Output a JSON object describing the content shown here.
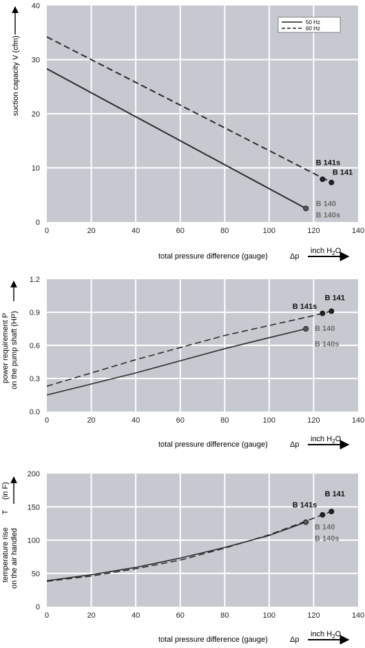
{
  "colors": {
    "plot_bg": "#c6c9d0",
    "grid": "#ffffff",
    "series_50hz": "#2b2b2b",
    "series_60hz": "#2b2b2b",
    "label_dark": "#111111",
    "label_grey": "#6d6d6d",
    "marker_50hz": "#555555",
    "marker_60hz": "#222222"
  },
  "xlabel": {
    "text": "total pressure difference (gauge)",
    "symbol": "Δp",
    "unit_prefix": "inch H",
    "unit_sub": "2",
    "unit_suffix": "O"
  },
  "chart_data": [
    {
      "type": "line",
      "ylabel_lines": [
        "suction capacity V (cfm)"
      ],
      "xlim": [
        0,
        140
      ],
      "ylim": [
        0,
        40
      ],
      "xticks": [
        "0",
        "20",
        "40",
        "60",
        "80",
        "100",
        "120",
        "140"
      ],
      "yticks": [
        "0",
        "10",
        "20",
        "30",
        "40"
      ],
      "grid": true,
      "legend": {
        "position": "top-right",
        "entries": [
          {
            "label": "50 Hz",
            "style": "solid"
          },
          {
            "label": "60 Hz",
            "style": "dashed"
          }
        ]
      },
      "series": [
        {
          "name": "50 Hz",
          "style": "solid",
          "x": [
            0,
            116.5
          ],
          "y": [
            28.3,
            2.5
          ]
        },
        {
          "name": "60 Hz",
          "style": "dashed",
          "x": [
            0,
            128
          ],
          "y": [
            34.2,
            7.3
          ]
        }
      ],
      "markers": [
        {
          "series": "60 Hz",
          "x": 124,
          "y": 7.9
        },
        {
          "series": "60 Hz",
          "x": 128,
          "y": 7.3
        },
        {
          "series": "50 Hz",
          "x": 116.5,
          "y": 2.5
        }
      ],
      "annotations": [
        {
          "text": "B 141s",
          "x": 121,
          "y": 10.5,
          "color": "dark"
        },
        {
          "text": "B 141",
          "x": 128.5,
          "y": 8.7,
          "color": "dark"
        },
        {
          "text": "B 140",
          "x": 121,
          "y": 2.9,
          "color": "grey"
        },
        {
          "text": "B 140s",
          "x": 121,
          "y": 0.8,
          "color": "grey"
        }
      ]
    },
    {
      "type": "line",
      "ylabel_lines": [
        "power requirement P",
        "on the pump shaft (HP)"
      ],
      "xlim": [
        0,
        140
      ],
      "ylim": [
        0,
        1.2
      ],
      "xticks": [
        "0",
        "20",
        "40",
        "60",
        "80",
        "100",
        "120",
        "140"
      ],
      "yticks": [
        "0.0",
        "0.3",
        "0.6",
        "0.9",
        "1.2"
      ],
      "grid": true,
      "series": [
        {
          "name": "50 Hz",
          "style": "solid",
          "x": [
            0,
            20,
            40,
            60,
            80,
            100,
            116.5
          ],
          "y": [
            0.15,
            0.25,
            0.35,
            0.46,
            0.57,
            0.67,
            0.75
          ]
        },
        {
          "name": "60 Hz",
          "style": "dashed",
          "x": [
            0,
            20,
            40,
            60,
            80,
            100,
            120,
            128
          ],
          "y": [
            0.23,
            0.35,
            0.47,
            0.58,
            0.69,
            0.78,
            0.87,
            0.91
          ]
        }
      ],
      "markers": [
        {
          "series": "60 Hz",
          "x": 124,
          "y": 0.89
        },
        {
          "series": "60 Hz",
          "x": 128,
          "y": 0.91
        },
        {
          "series": "50 Hz",
          "x": 116.5,
          "y": 0.75
        }
      ],
      "annotations": [
        {
          "text": "B 141",
          "x": 125,
          "y": 1.01,
          "color": "dark"
        },
        {
          "text": "B 141s",
          "x": 110.5,
          "y": 0.93,
          "color": "dark"
        },
        {
          "text": "B 140",
          "x": 120.5,
          "y": 0.73,
          "color": "grey"
        },
        {
          "text": "B 140s",
          "x": 120.5,
          "y": 0.59,
          "color": "grey"
        }
      ]
    },
    {
      "type": "line",
      "ylabel_lines": [
        "temperature rise",
        "on the air handled"
      ],
      "ylabel_symbol": "T",
      "ylabel_unit": "(in F)",
      "xlim": [
        0,
        140
      ],
      "ylim": [
        0,
        200
      ],
      "xticks": [
        "0",
        "20",
        "40",
        "60",
        "80",
        "100",
        "120",
        "140"
      ],
      "yticks": [
        "0",
        "50",
        "100",
        "150",
        "200"
      ],
      "grid": true,
      "series": [
        {
          "name": "50 Hz",
          "style": "solid",
          "x": [
            0,
            20,
            40,
            60,
            80,
            100,
            116.5
          ],
          "y": [
            39,
            48,
            59,
            73,
            89,
            107,
            127
          ]
        },
        {
          "name": "60 Hz",
          "style": "dashed",
          "x": [
            0,
            20,
            40,
            60,
            80,
            100,
            120,
            128
          ],
          "y": [
            38,
            46,
            57,
            70,
            88,
            108,
            133,
            143
          ]
        }
      ],
      "markers": [
        {
          "series": "60 Hz",
          "x": 124,
          "y": 138
        },
        {
          "series": "60 Hz",
          "x": 128,
          "y": 143
        },
        {
          "series": "50 Hz",
          "x": 116.5,
          "y": 127
        }
      ],
      "annotations": [
        {
          "text": "B 141",
          "x": 125,
          "y": 166,
          "color": "dark"
        },
        {
          "text": "B 141s",
          "x": 110.5,
          "y": 149,
          "color": "dark"
        },
        {
          "text": "B 140",
          "x": 120.5,
          "y": 116,
          "color": "grey"
        },
        {
          "text": "B 140s",
          "x": 120.5,
          "y": 99,
          "color": "grey"
        }
      ]
    }
  ]
}
